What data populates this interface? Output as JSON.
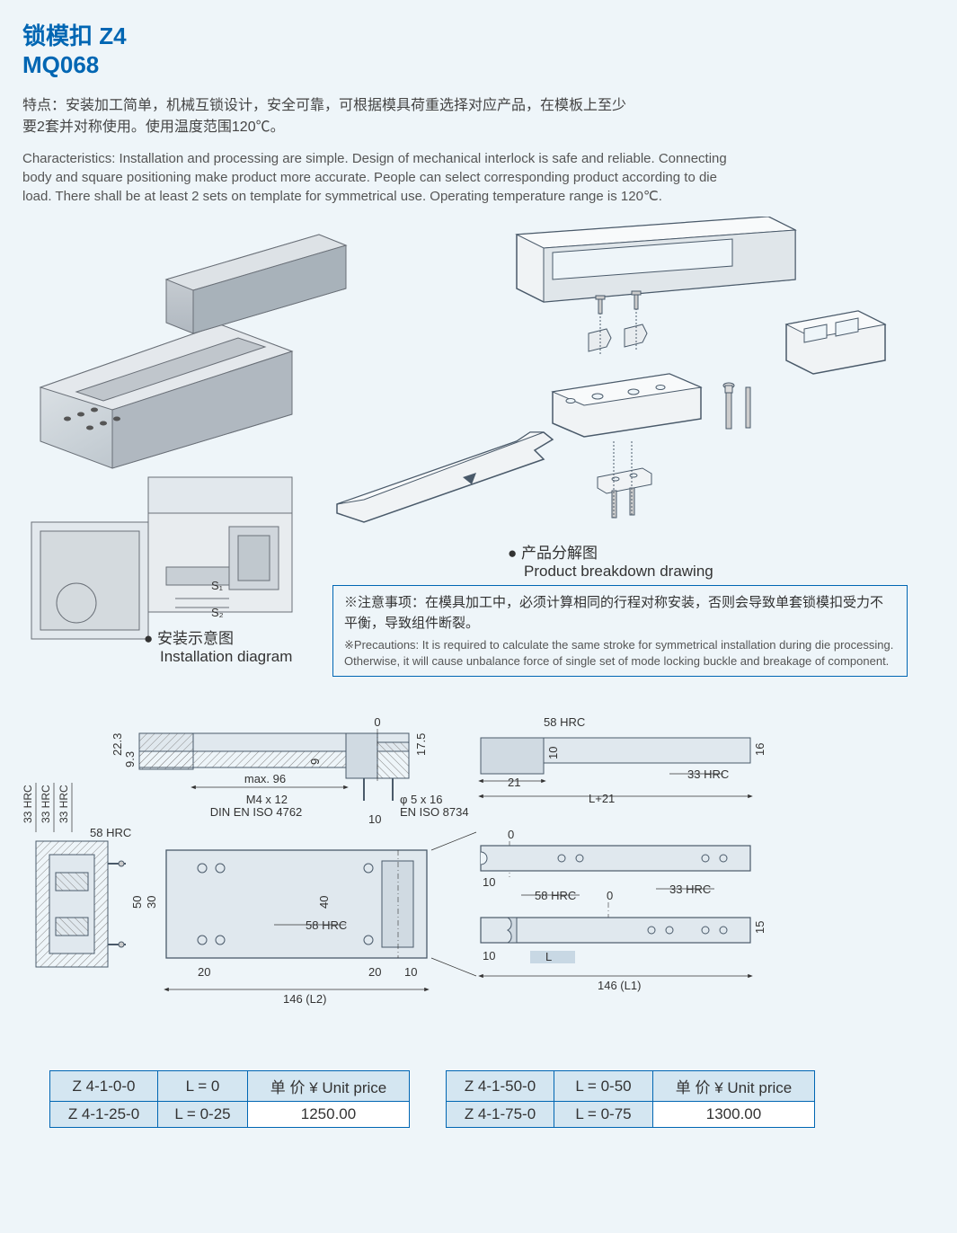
{
  "header": {
    "title_cn": "锁模扣 Z4",
    "title_en": "MQ068"
  },
  "features_cn": "特点：安装加工简单，机械互锁设计，安全可靠，可根据模具荷重选择对应产品，在模板上至少要2套并对称使用。使用温度范围120℃。",
  "characteristics_en": "Characteristics: Installation and processing are simple. Design of mechanical interlock is safe and reliable. Connecting body and square positioning make product more accurate. People can select corresponding product according to die load. There shall be at least 2 sets on template for symmetrical use. Operating temperature range is 120℃.",
  "install_label_cn": "● 安装示意图",
  "install_label_en": "Installation diagram",
  "breakdown_label_cn": "● 产品分解图",
  "breakdown_label_en": "Product breakdown drawing",
  "precaution_cn": "※注意事项：在模具加工中，必须计算相同的行程对称安装，否则会导致单套锁模扣受力不平衡，导致组件断裂。",
  "precaution_en": "※Precautions: It is required to calculate the same stroke for symmetrical installation during die processing. Otherwise, it will cause unbalance force of single set of mode locking buckle and breakage of component.",
  "dim_labels": {
    "hrc33": "33 HRC",
    "hrc58": "58 HRC",
    "d22_3": "22.3",
    "d9_3": "9.3",
    "d9": "9",
    "max96": "max. 96",
    "m4x12": "M4 x 12",
    "din": "DIN EN ISO 4762",
    "phi5": "φ 5 x 16",
    "eniso": "EN ISO 8734",
    "d10": "10",
    "d17_5": "17.5",
    "d21": "21",
    "l21": "L+21",
    "d16": "16",
    "d50": "50",
    "d30": "30",
    "d40": "40",
    "d20": "20",
    "d146l2": "146 (L2)",
    "d146l1": "146 (L1)",
    "d15": "15",
    "L": "L",
    "zero": "0"
  },
  "price_header": "单 价 ¥ Unit price",
  "table1": {
    "rows": [
      [
        "Z 4-1-0-0",
        "L = 0",
        "单 价 ¥ Unit price"
      ],
      [
        "Z 4-1-25-0",
        "L = 0-25",
        "1250.00"
      ]
    ],
    "col_widths": [
      "120px",
      "100px",
      "180px"
    ]
  },
  "table2": {
    "rows": [
      [
        "Z 4-1-50-0",
        "L = 0-50",
        "单 价 ¥ Unit price"
      ],
      [
        "Z 4-1-75-0",
        "L = 0-75",
        "1300.00"
      ]
    ],
    "col_widths": [
      "120px",
      "110px",
      "180px"
    ]
  },
  "colors": {
    "accent": "#0066b3",
    "bg": "#eef5f9",
    "steel_light": "#d8dce0",
    "steel_mid": "#b8c0c8",
    "steel_dark": "#98a0a8",
    "outline": "#6a7078",
    "hatch": "#888",
    "tech_fill": "#e0e8ee",
    "tech_stroke": "#4a5a6a"
  }
}
